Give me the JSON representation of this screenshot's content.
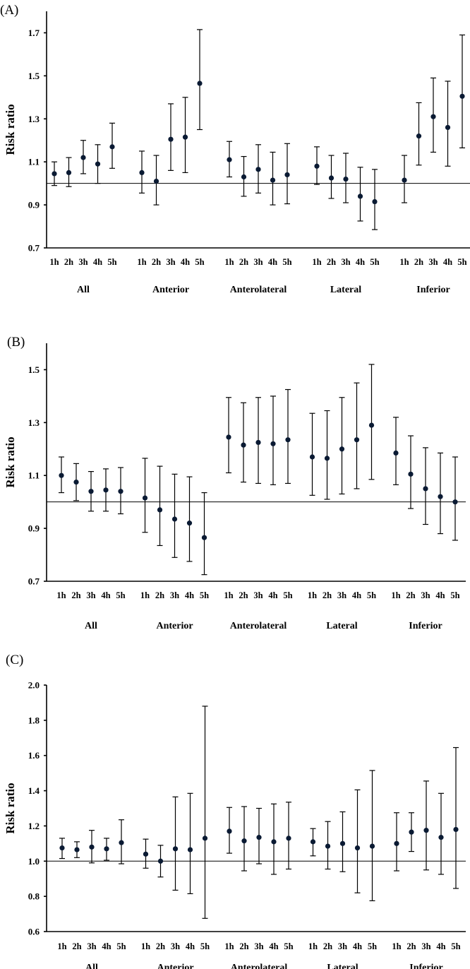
{
  "chart_data": [
    {
      "type": "scatter",
      "panel_label": "(A)",
      "ylabel": "Risk ratio",
      "ylim": [
        0.7,
        1.8
      ],
      "yticks": [
        "0.7",
        "0.9",
        "1.1",
        "1.3",
        "1.5",
        "1.7"
      ],
      "yticks_values": [
        0.7,
        0.9,
        1.1,
        1.3,
        1.5,
        1.7
      ],
      "reference_line": 1.0,
      "hours": [
        "1h",
        "2h",
        "3h",
        "4h",
        "5h"
      ],
      "groups": [
        {
          "name": "All",
          "estimates": [
            1.045,
            1.05,
            1.12,
            1.09,
            1.17
          ],
          "lower": [
            0.99,
            0.985,
            1.045,
            1.0,
            1.07
          ],
          "upper": [
            1.1,
            1.12,
            1.2,
            1.18,
            1.28
          ]
        },
        {
          "name": "Anterior",
          "estimates": [
            1.05,
            1.01,
            1.205,
            1.215,
            1.465
          ],
          "lower": [
            0.955,
            0.9,
            1.06,
            1.05,
            1.25
          ],
          "upper": [
            1.15,
            1.13,
            1.37,
            1.4,
            1.715
          ]
        },
        {
          "name": "Anterolateral",
          "estimates": [
            1.11,
            1.03,
            1.065,
            1.015,
            1.04
          ],
          "lower": [
            1.03,
            0.94,
            0.955,
            0.9,
            0.905
          ],
          "upper": [
            1.195,
            1.125,
            1.18,
            1.145,
            1.185
          ]
        },
        {
          "name": "Lateral",
          "estimates": [
            1.08,
            1.025,
            1.02,
            0.94,
            0.915
          ],
          "lower": [
            0.995,
            0.93,
            0.91,
            0.825,
            0.785
          ],
          "upper": [
            1.17,
            1.13,
            1.14,
            1.075,
            1.065
          ]
        },
        {
          "name": "Inferior",
          "estimates": [
            1.015,
            1.22,
            1.31,
            1.26,
            1.405
          ],
          "lower": [
            0.91,
            1.085,
            1.145,
            1.08,
            1.165
          ],
          "upper": [
            1.13,
            1.375,
            1.49,
            1.475,
            1.69
          ]
        }
      ]
    },
    {
      "type": "scatter",
      "panel_label": "(B)",
      "ylabel": "Risk ratio",
      "ylim": [
        0.7,
        1.6
      ],
      "yticks": [
        "0.7",
        "0.9",
        "1.1",
        "1.3",
        "1.5"
      ],
      "yticks_values": [
        0.7,
        0.9,
        1.1,
        1.3,
        1.5
      ],
      "reference_line": 1.0,
      "hours": [
        "1h",
        "2h",
        "3h",
        "4h",
        "5h"
      ],
      "groups": [
        {
          "name": "All",
          "estimates": [
            1.1,
            1.075,
            1.04,
            1.045,
            1.04
          ],
          "lower": [
            1.035,
            1.005,
            0.965,
            0.965,
            0.955
          ],
          "upper": [
            1.17,
            1.145,
            1.115,
            1.125,
            1.13
          ]
        },
        {
          "name": "Anterior",
          "estimates": [
            1.015,
            0.97,
            0.935,
            0.92,
            0.865
          ],
          "lower": [
            0.885,
            0.835,
            0.79,
            0.775,
            0.725
          ],
          "upper": [
            1.165,
            1.135,
            1.105,
            1.095,
            1.035
          ]
        },
        {
          "name": "Anterolateral",
          "estimates": [
            1.245,
            1.215,
            1.225,
            1.22,
            1.235
          ],
          "lower": [
            1.11,
            1.075,
            1.07,
            1.065,
            1.07
          ],
          "upper": [
            1.395,
            1.375,
            1.395,
            1.4,
            1.425
          ]
        },
        {
          "name": "Lateral",
          "estimates": [
            1.17,
            1.165,
            1.2,
            1.235,
            1.29
          ],
          "lower": [
            1.025,
            1.01,
            1.03,
            1.05,
            1.085
          ],
          "upper": [
            1.335,
            1.345,
            1.395,
            1.45,
            1.52
          ]
        },
        {
          "name": "Inferior",
          "estimates": [
            1.185,
            1.105,
            1.05,
            1.02,
            1.0
          ],
          "lower": [
            1.065,
            0.975,
            0.915,
            0.88,
            0.855
          ],
          "upper": [
            1.32,
            1.25,
            1.205,
            1.185,
            1.17
          ]
        }
      ]
    },
    {
      "type": "scatter",
      "panel_label": "(C)",
      "ylabel": "Risk ratio",
      "ylim": [
        0.6,
        2.0
      ],
      "yticks": [
        "0.6",
        "0.8",
        "1.0",
        "1.2",
        "1.4",
        "1.6",
        "1.8",
        "2.0"
      ],
      "yticks_values": [
        0.6,
        0.8,
        1.0,
        1.2,
        1.4,
        1.6,
        1.8,
        2.0
      ],
      "reference_line": 1.0,
      "hours": [
        "1h",
        "2h",
        "3h",
        "4h",
        "5h"
      ],
      "groups": [
        {
          "name": "All",
          "estimates": [
            1.075,
            1.065,
            1.08,
            1.07,
            1.105
          ],
          "lower": [
            1.015,
            1.02,
            0.99,
            1.005,
            0.985
          ],
          "upper": [
            1.13,
            1.11,
            1.175,
            1.13,
            1.235
          ]
        },
        {
          "name": "Anterior",
          "estimates": [
            1.04,
            1.0,
            1.07,
            1.065,
            1.13
          ],
          "lower": [
            0.96,
            0.91,
            0.835,
            0.815,
            0.675
          ],
          "upper": [
            1.125,
            1.09,
            1.365,
            1.385,
            1.88
          ]
        },
        {
          "name": "Anterolateral",
          "estimates": [
            1.17,
            1.115,
            1.135,
            1.11,
            1.13
          ],
          "lower": [
            1.045,
            0.945,
            0.985,
            0.925,
            0.955
          ],
          "upper": [
            1.305,
            1.31,
            1.3,
            1.325,
            1.335
          ]
        },
        {
          "name": "Lateral",
          "estimates": [
            1.11,
            1.085,
            1.1,
            1.075,
            1.085
          ],
          "lower": [
            1.03,
            0.955,
            0.94,
            0.82,
            0.775
          ],
          "upper": [
            1.185,
            1.225,
            1.28,
            1.405,
            1.515
          ]
        },
        {
          "name": "Inferior",
          "estimates": [
            1.1,
            1.165,
            1.175,
            1.135,
            1.18
          ],
          "lower": [
            0.945,
            1.055,
            0.95,
            0.925,
            0.845
          ],
          "upper": [
            1.275,
            1.275,
            1.455,
            1.385,
            1.645
          ]
        }
      ]
    }
  ]
}
